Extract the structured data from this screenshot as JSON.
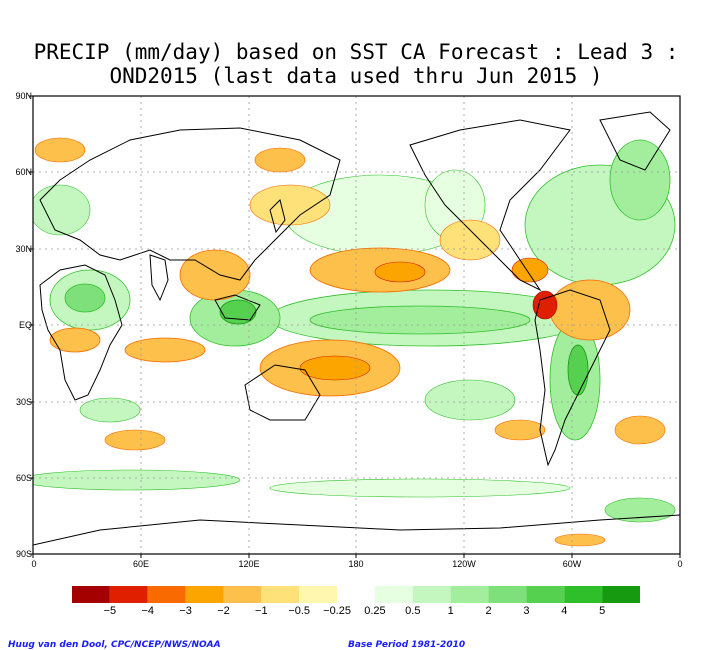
{
  "title": {
    "line1": "PRECIP (mm/day) based on SST CA Forecast : Lead 3 :",
    "line2": "OND2015 (last data used thru Jun 2015 )"
  },
  "lat_ticks": [
    "90N",
    "60N",
    "30N",
    "EQ",
    "30S",
    "60S",
    "90S"
  ],
  "lon_ticks": [
    "0",
    "60E",
    "120E",
    "180",
    "120W",
    "60W",
    "0"
  ],
  "colorbar": {
    "colors": [
      "#a50000",
      "#e01e00",
      "#f96a00",
      "#fca500",
      "#fdc04a",
      "#ffe17a",
      "#fff6b0",
      "#ffffff",
      "#e6ffe0",
      "#c4f7bf",
      "#a3ee9c",
      "#7de07a",
      "#55d14f",
      "#2fbf2a",
      "#169a10"
    ],
    "labels": [
      "−5",
      "−4",
      "−3",
      "−2",
      "−1",
      "−0.5",
      "−0.25",
      "0.25",
      "0.5",
      "1",
      "2",
      "3",
      "4",
      "5"
    ]
  },
  "credits": {
    "left": "Huug van den Dool, CPC/NCEP/NWS/NOAA",
    "right": "Base Period 1981-2010"
  },
  "palette": {
    "land_outline": "#000000",
    "grid": "#9a9a9a",
    "wet_light": "#d8f6d0",
    "wet_mid": "#a6e89c",
    "wet_strong": "#5ccb55",
    "dry_light": "#ffe6a6",
    "dry_mid": "#fbc26a",
    "dry_strong": "#e57b3a",
    "dry_extreme": "#c8321e"
  }
}
